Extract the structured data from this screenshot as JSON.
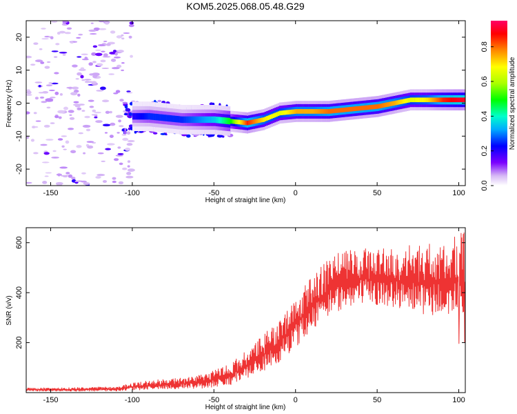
{
  "title": "KOM5.2025.068.05.48.G29",
  "colors": {
    "snr_line": "#ee3333",
    "frame": "#000000",
    "background": "#ffffff"
  },
  "chart_data": [
    {
      "type": "heatmap",
      "xlabel": "Height of straight line (km)",
      "ylabel": "Frequency (Hz)",
      "xlim": [
        -165,
        104
      ],
      "ylim": [
        -25,
        25
      ],
      "x_ticks": [
        -150,
        -100,
        -50,
        0,
        50,
        100
      ],
      "y_ticks": [
        -20,
        -10,
        0,
        10,
        20
      ],
      "colorbar": {
        "label": "Normalized spectral amplitude",
        "range": [
          0.0,
          0.95
        ],
        "ticks": [
          0.0,
          0.2,
          0.4,
          0.6,
          0.8
        ],
        "colormap": "rainbow"
      },
      "ridge": {
        "x": [
          -100,
          -90,
          -80,
          -70,
          -60,
          -50,
          -40,
          -30,
          -20,
          -10,
          0,
          10,
          20,
          30,
          40,
          50,
          60,
          70,
          80,
          90,
          100
        ],
        "frequency": [
          -4,
          -4,
          -4.5,
          -5,
          -5,
          -5,
          -5.5,
          -6,
          -5,
          -3,
          -2.5,
          -2.5,
          -2.5,
          -2,
          -1.5,
          -1,
          0,
          1,
          1,
          1,
          1
        ],
        "amplitude": [
          0.2,
          0.25,
          0.25,
          0.25,
          0.3,
          0.35,
          0.5,
          0.85,
          0.7,
          0.65,
          0.75,
          0.75,
          0.8,
          0.8,
          0.8,
          0.8,
          0.75,
          0.65,
          0.7,
          0.85,
          0.9
        ]
      },
      "noise_region": {
        "x_range": [
          -165,
          -100
        ],
        "frequency_range": [
          -25,
          25
        ],
        "amplitude": 0.05
      }
    },
    {
      "type": "line",
      "xlabel": "Height of straight line (km)",
      "ylabel": "SNR (v/v)",
      "xlim": [
        -165,
        104
      ],
      "ylim": [
        0,
        660
      ],
      "x_ticks": [
        -150,
        -100,
        -50,
        0,
        50,
        100
      ],
      "y_ticks": [
        200,
        400,
        600
      ],
      "series": [
        {
          "x": [
            -165,
            -150,
            -130,
            -110,
            -100,
            -90,
            -80,
            -70,
            -60,
            -50,
            -40,
            -30,
            -20,
            -10,
            0,
            10,
            20,
            30,
            40,
            50,
            60,
            70,
            80,
            90,
            100,
            104
          ],
          "lower": [
            5,
            5,
            5,
            5,
            8,
            10,
            12,
            15,
            15,
            20,
            30,
            50,
            80,
            120,
            180,
            250,
            300,
            340,
            350,
            350,
            340,
            330,
            310,
            300,
            290,
            280
          ],
          "upper": [
            20,
            20,
            22,
            25,
            40,
            50,
            55,
            60,
            70,
            90,
            120,
            170,
            230,
            300,
            380,
            470,
            540,
            570,
            580,
            580,
            585,
            590,
            595,
            600,
            640,
            650
          ]
        }
      ]
    }
  ]
}
